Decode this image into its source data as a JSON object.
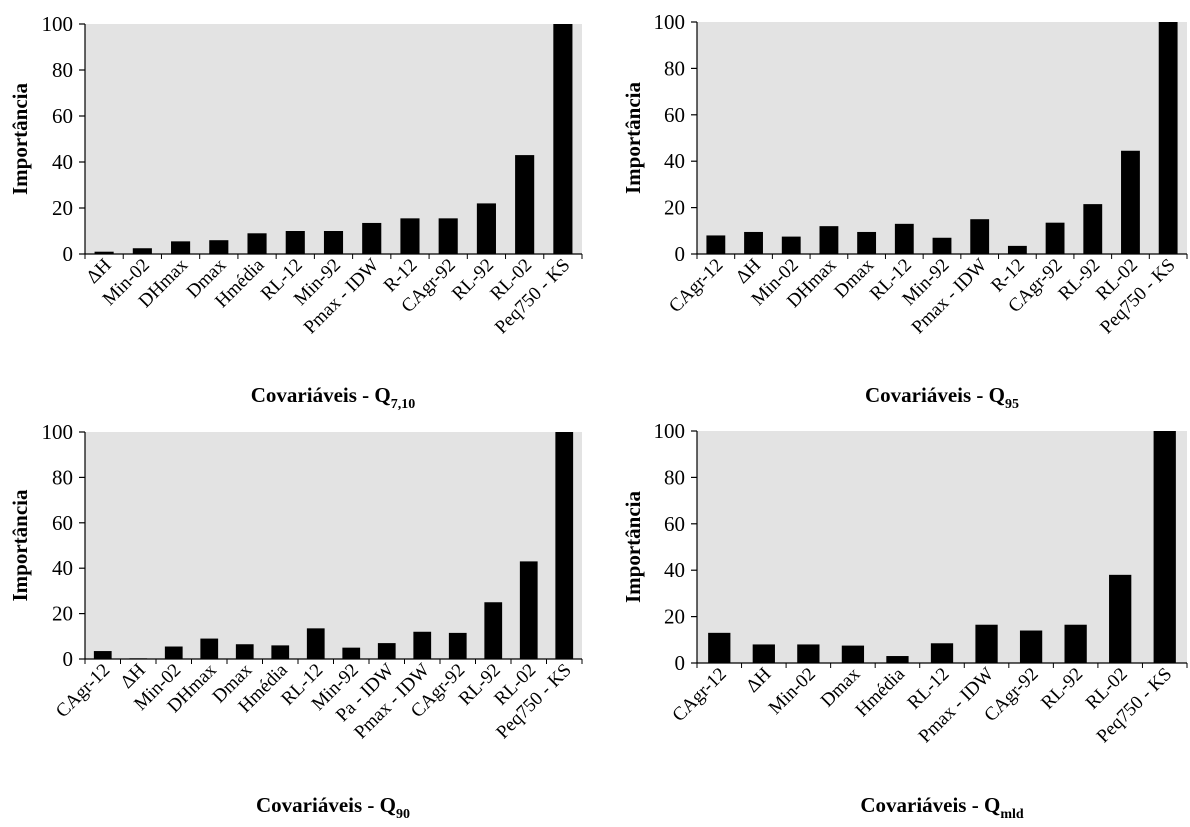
{
  "chart_data": [
    {
      "type": "bar",
      "ylabel": "Importância",
      "xlabel": {
        "main": "Covariáveis - Q",
        "sub": "7,10"
      },
      "ylim": [
        0,
        100
      ],
      "yticks": [
        "0",
        "20",
        "40",
        "60",
        "80",
        "100"
      ],
      "categories": [
        "ΔH",
        "Min-02",
        "DHmax",
        "Dmax",
        "Hmédia",
        "RL-12",
        "Min-92",
        "Pmax - IDW",
        "R-12",
        "CAgr-92",
        "RL-92",
        "RL-02",
        "Peq750 - KS"
      ],
      "values": [
        1,
        2.5,
        5.5,
        6,
        9,
        10,
        10,
        13.5,
        15.5,
        15.5,
        22,
        43,
        100
      ],
      "bar_color": "#000000",
      "plot_background": "#e3e3e3"
    },
    {
      "type": "bar",
      "ylabel": "Importância",
      "xlabel": {
        "main": "Covariáveis - Q",
        "sub": "95"
      },
      "ylim": [
        0,
        100
      ],
      "yticks": [
        "0",
        "20",
        "40",
        "60",
        "80",
        "100"
      ],
      "categories": [
        "CAgr-12",
        "ΔH",
        "Min-02",
        "DHmax",
        "Dmax",
        "RL-12",
        "Min-92",
        "Pmax - IDW",
        "R-12",
        "CAgr-92",
        "RL-92",
        "RL-02",
        "Peq750 - KS"
      ],
      "values": [
        8,
        9.5,
        7.5,
        12,
        9.5,
        13,
        7,
        15,
        3.5,
        13.5,
        21.5,
        44.5,
        100
      ],
      "bar_color": "#000000",
      "plot_background": "#e3e3e3"
    },
    {
      "type": "bar",
      "ylabel": "Importância",
      "xlabel": {
        "main": "Covariáveis - Q",
        "sub": "90"
      },
      "ylim": [
        0,
        100
      ],
      "yticks": [
        "0",
        "20",
        "40",
        "60",
        "80",
        "100"
      ],
      "categories": [
        "CAgr-12",
        "ΔH",
        "Min-02",
        "DHmax",
        "Dmax",
        "Hmédia",
        "RL-12",
        "Min-92",
        "Pa - IDW",
        "Pmax - IDW",
        "CAgr-92",
        "RL-92",
        "RL-02",
        "Peq750 - KS"
      ],
      "values": [
        3.5,
        0.3,
        5.5,
        9,
        6.5,
        6,
        13.5,
        5,
        7,
        12,
        11.5,
        25,
        43,
        100
      ],
      "bar_color": "#000000",
      "plot_background": "#e3e3e3"
    },
    {
      "type": "bar",
      "ylabel": "Importância",
      "xlabel": {
        "main": "Covariáveis - Q",
        "sub": "mld"
      },
      "ylim": [
        0,
        100
      ],
      "yticks": [
        "0",
        "20",
        "40",
        "60",
        "80",
        "100"
      ],
      "categories": [
        "CAgr-12",
        "ΔH",
        "Min-02",
        "Dmax",
        "Hmédia",
        "RL-12",
        "Pmax - IDW",
        "CAgr-92",
        "RL-92",
        "RL-02",
        "Peq750 - KS"
      ],
      "values": [
        13,
        8,
        8,
        7.5,
        3,
        8.5,
        16.5,
        14,
        16.5,
        38,
        100
      ],
      "bar_color": "#000000",
      "plot_background": "#e3e3e3"
    }
  ]
}
